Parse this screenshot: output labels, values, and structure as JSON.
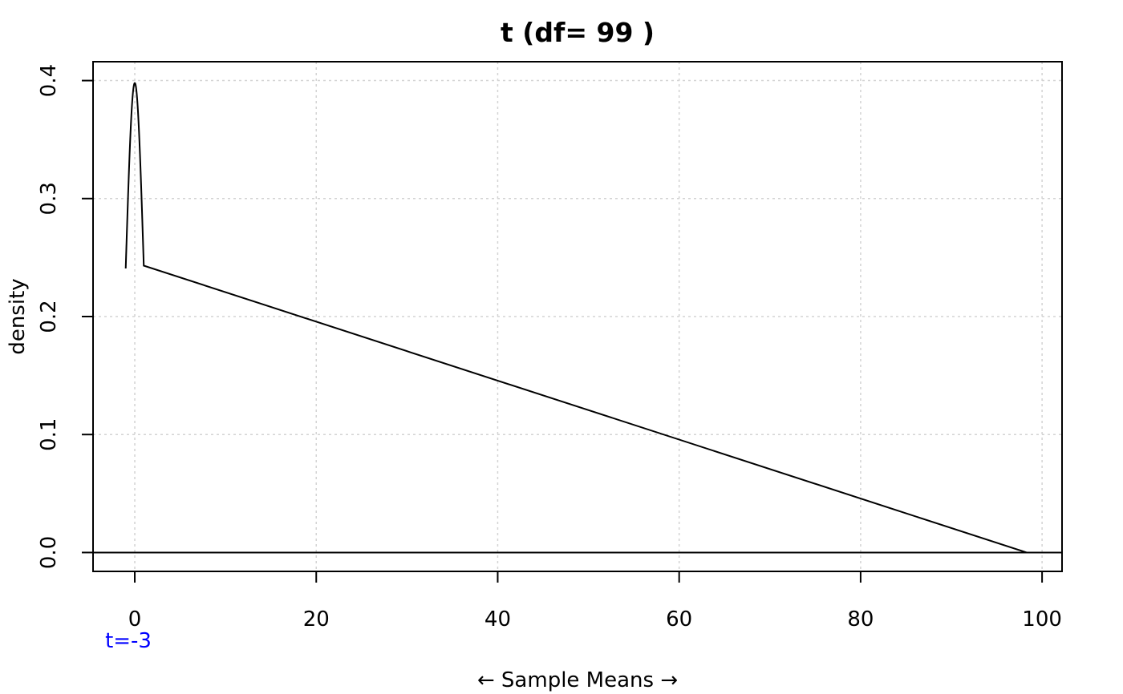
{
  "chart_data": {
    "type": "line",
    "title": "t (df= 99 )",
    "xlabel": "← Sample Means →",
    "ylabel": "density",
    "xlim": [
      -4.6,
      102.2
    ],
    "ylim": [
      -0.016,
      0.416
    ],
    "x_ticks": [
      0,
      20,
      40,
      60,
      80,
      100
    ],
    "x_tick_labels": [
      "0",
      "20",
      "40",
      "60",
      "80",
      "100"
    ],
    "y_ticks": [
      0.0,
      0.1,
      0.2,
      0.3,
      0.4
    ],
    "y_tick_labels": [
      "0.0",
      "0.1",
      "0.2",
      "0.3",
      "0.4"
    ],
    "grid": true,
    "baseline_y": 0,
    "curve": {
      "distribution": "t",
      "df": 99,
      "x_range": [
        -1.0,
        98.3
      ]
    },
    "annotations": [
      {
        "text": "t=-3",
        "color": "#0000ff",
        "x": 0
      }
    ]
  },
  "colors": {
    "curve": "#000000",
    "grid": "#d3d3d3",
    "annotation": "#0000ff"
  }
}
